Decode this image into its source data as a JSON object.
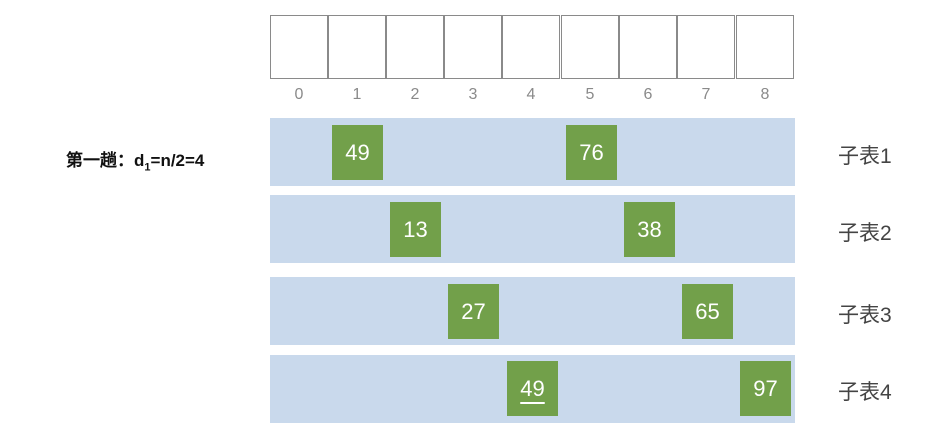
{
  "array": {
    "indices": [
      "0",
      "1",
      "2",
      "3",
      "4",
      "5",
      "6",
      "7",
      "8"
    ]
  },
  "pass_label": {
    "prefix": "第一趟：d",
    "subscript": "1",
    "suffix": "=n/2=4"
  },
  "subtables": [
    {
      "label": "子表1",
      "elements": [
        {
          "index": 1,
          "value": "49"
        },
        {
          "index": 5,
          "value": "76"
        }
      ]
    },
    {
      "label": "子表2",
      "elements": [
        {
          "index": 2,
          "value": "13"
        },
        {
          "index": 6,
          "value": "38"
        }
      ]
    },
    {
      "label": "子表3",
      "elements": [
        {
          "index": 3,
          "value": "27"
        },
        {
          "index": 7,
          "value": "65"
        }
      ]
    },
    {
      "label": "子表4",
      "elements": [
        {
          "index": 4,
          "value": "49",
          "underlined": true
        },
        {
          "index": 8,
          "value": "97"
        }
      ]
    }
  ],
  "colors": {
    "band": "#c9d9ec",
    "element": "#72a04a",
    "element_text": "#ffffff",
    "index_text": "#8a8a8a"
  }
}
